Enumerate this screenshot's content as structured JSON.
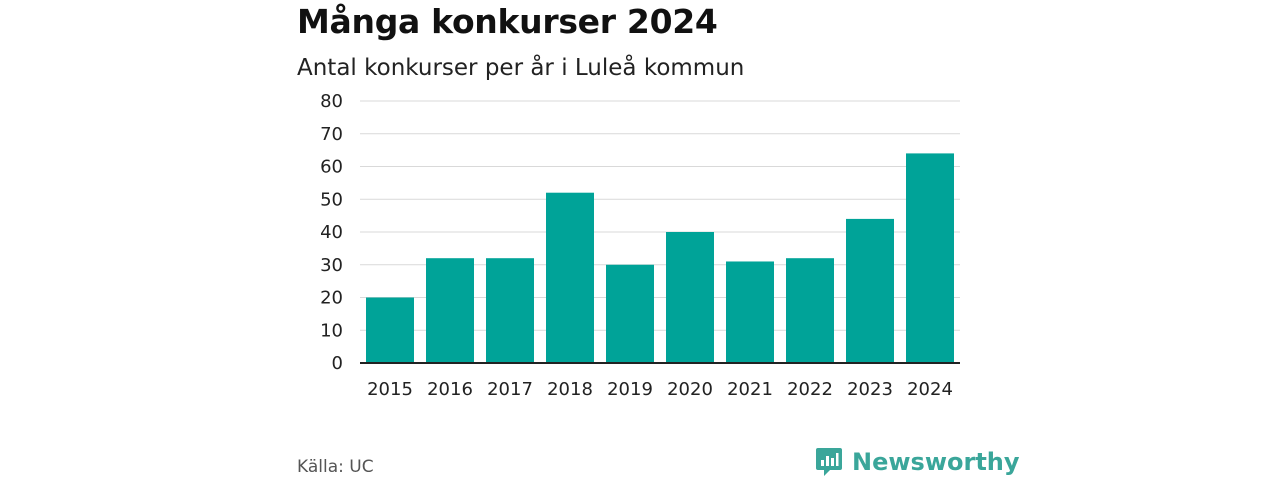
{
  "title": "Många konkurser 2024",
  "subtitle": "Antal konkurser per år i Luleå kommun",
  "source": "Källa: UC",
  "brand": {
    "name": "Newsworthy",
    "icon": "newsworthy-logo-icon"
  },
  "colors": {
    "bar": "#00a398",
    "grid": "#d9d9d9",
    "axis": "#222222",
    "brand": "#3aa69a"
  },
  "chart_data": {
    "type": "bar",
    "title": "Många konkurser 2024",
    "subtitle": "Antal konkurser per år i Luleå kommun",
    "categories": [
      "2015",
      "2016",
      "2017",
      "2018",
      "2019",
      "2020",
      "2021",
      "2022",
      "2023",
      "2024"
    ],
    "values": [
      20,
      32,
      32,
      52,
      30,
      40,
      31,
      32,
      44,
      64
    ],
    "xlabel": "",
    "ylabel": "",
    "ylim": [
      0,
      80
    ],
    "yticks": [
      0,
      10,
      20,
      30,
      40,
      50,
      60,
      70,
      80
    ],
    "grid": true,
    "legend": "none"
  }
}
